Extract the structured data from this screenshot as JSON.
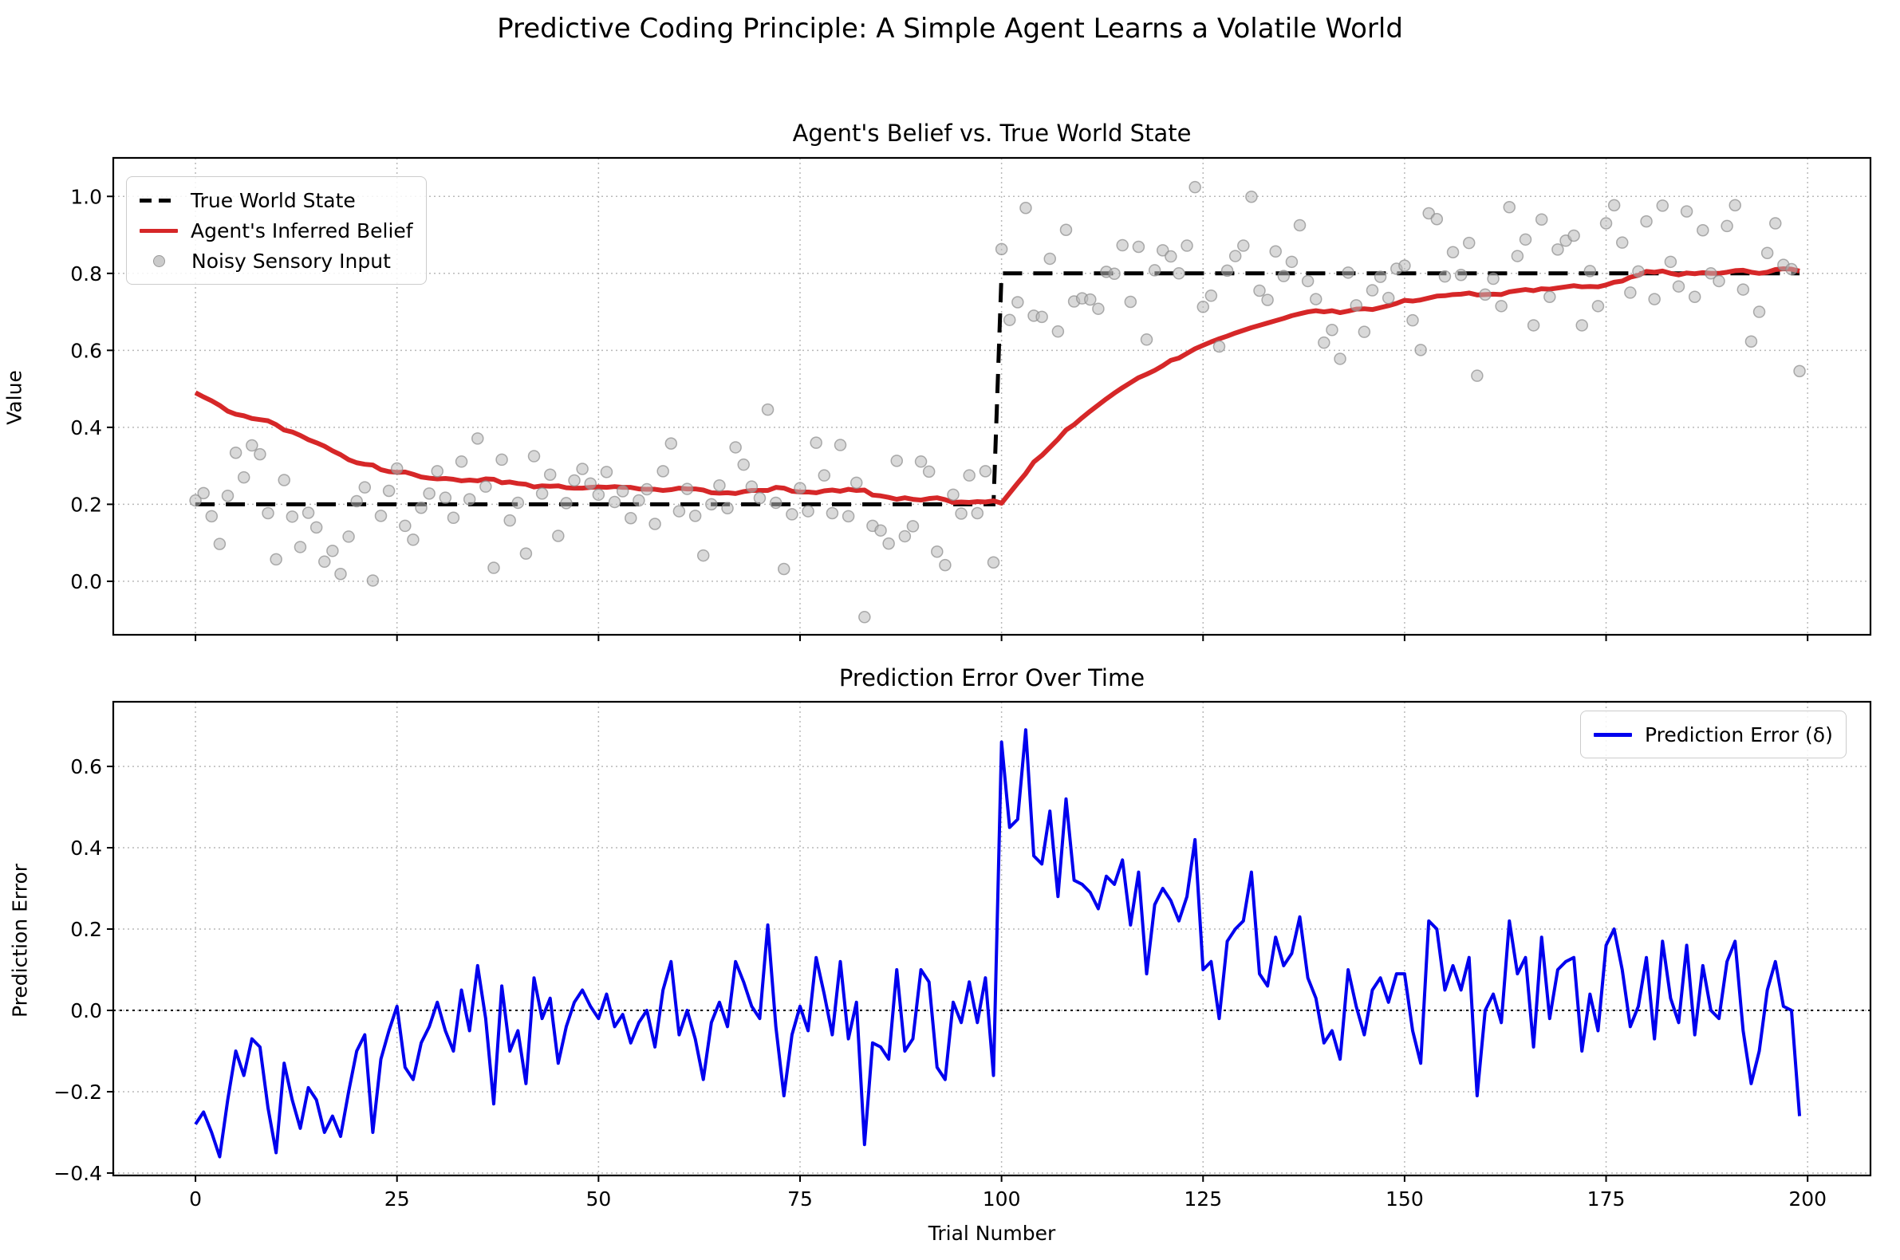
{
  "figure": {
    "title": "Predictive Coding Principle: A Simple Agent Learns a Volatile World",
    "background": "#ffffff"
  },
  "top_chart": {
    "title": "Agent's Belief vs. True World State",
    "ylabel": "Value",
    "legend": [
      {
        "label": "True World State",
        "color": "#000000",
        "style": "dashed"
      },
      {
        "label": "Agent's Inferred Belief",
        "color": "#d62728",
        "style": "solid"
      },
      {
        "label": "Noisy Sensory Input",
        "color": "#bdbdbd",
        "style": "dot"
      }
    ]
  },
  "bottom_chart": {
    "title": "Prediction Error Over Time",
    "ylabel": "Prediction Error",
    "xlabel": "Trial Number",
    "legend": [
      {
        "label": "Prediction Error (δ)",
        "color": "#0000ee",
        "style": "solid"
      }
    ]
  },
  "chart_data": [
    {
      "type": "line",
      "title": "Agent's Belief vs. True World State",
      "xlabel": "",
      "ylabel": "Value",
      "x_start": 0,
      "x_step": 1,
      "n": 200,
      "xlim": [
        -10.2,
        207.8
      ],
      "ylim": [
        -0.139,
        1.1
      ],
      "xticks": [
        0,
        25,
        50,
        75,
        100,
        125,
        150,
        175,
        200
      ],
      "xtick_labels_shown": false,
      "yticks": [
        0.0,
        0.2,
        0.4,
        0.6,
        0.8,
        1.0
      ],
      "grid": true,
      "legend_position": "upper-left",
      "series": [
        {
          "name": "True World State",
          "style": "dashed",
          "color": "#000000",
          "width": 5,
          "segments": [
            {
              "x_from": 0,
              "x_to": 99,
              "value": 0.2
            },
            {
              "x_from": 100,
              "x_to": 199,
              "value": 0.8
            }
          ]
        },
        {
          "name": "Agent's Inferred Belief",
          "style": "solid",
          "color": "#d62728",
          "width": 6,
          "values": [
            0.49,
            0.479,
            0.469,
            0.457,
            0.442,
            0.434,
            0.43,
            0.423,
            0.42,
            0.417,
            0.407,
            0.393,
            0.388,
            0.379,
            0.368,
            0.36,
            0.351,
            0.339,
            0.329,
            0.316,
            0.308,
            0.304,
            0.302,
            0.29,
            0.285,
            0.283,
            0.284,
            0.278,
            0.271,
            0.268,
            0.266,
            0.267,
            0.265,
            0.261,
            0.263,
            0.261,
            0.266,
            0.265,
            0.256,
            0.258,
            0.254,
            0.252,
            0.245,
            0.248,
            0.247,
            0.248,
            0.243,
            0.242,
            0.242,
            0.244,
            0.245,
            0.244,
            0.246,
            0.244,
            0.244,
            0.24,
            0.239,
            0.239,
            0.236,
            0.238,
            0.242,
            0.24,
            0.24,
            0.237,
            0.23,
            0.229,
            0.23,
            0.228,
            0.233,
            0.236,
            0.236,
            0.236,
            0.244,
            0.242,
            0.234,
            0.232,
            0.232,
            0.23,
            0.235,
            0.237,
            0.234,
            0.239,
            0.236,
            0.237,
            0.224,
            0.222,
            0.218,
            0.213,
            0.217,
            0.213,
            0.211,
            0.215,
            0.217,
            0.212,
            0.205,
            0.206,
            0.205,
            0.207,
            0.206,
            0.209,
            0.203,
            0.229,
            0.255,
            0.28,
            0.31,
            0.327,
            0.348,
            0.369,
            0.393,
            0.407,
            0.425,
            0.442,
            0.458,
            0.474,
            0.489,
            0.503,
            0.516,
            0.529,
            0.538,
            0.548,
            0.56,
            0.574,
            0.58,
            0.592,
            0.604,
            0.613,
            0.622,
            0.63,
            0.637,
            0.645,
            0.652,
            0.659,
            0.665,
            0.671,
            0.677,
            0.683,
            0.69,
            0.695,
            0.7,
            0.703,
            0.7,
            0.703,
            0.698,
            0.702,
            0.707,
            0.708,
            0.706,
            0.711,
            0.716,
            0.722,
            0.73,
            0.728,
            0.731,
            0.736,
            0.741,
            0.742,
            0.745,
            0.746,
            0.749,
            0.744,
            0.745,
            0.746,
            0.745,
            0.752,
            0.755,
            0.758,
            0.755,
            0.76,
            0.759,
            0.762,
            0.765,
            0.768,
            0.765,
            0.766,
            0.765,
            0.77,
            0.777,
            0.78,
            0.79,
            0.795,
            0.805,
            0.803,
            0.806,
            0.8,
            0.796,
            0.801,
            0.799,
            0.802,
            0.8,
            0.8,
            0.803,
            0.807,
            0.808,
            0.803,
            0.8,
            0.803,
            0.81,
            0.812,
            0.811,
            0.806
          ]
        },
        {
          "name": "Noisy Sensory Input",
          "style": "scatter",
          "color": "#bdbdbd",
          "marker_radius": 7,
          "values": [
            0.21,
            0.229,
            0.169,
            0.097,
            0.222,
            0.334,
            0.27,
            0.353,
            0.33,
            0.177,
            0.057,
            0.263,
            0.168,
            0.089,
            0.178,
            0.14,
            0.051,
            0.079,
            0.019,
            0.116,
            0.208,
            0.244,
            0.002,
            0.17,
            0.235,
            0.293,
            0.144,
            0.108,
            0.191,
            0.228,
            0.286,
            0.217,
            0.165,
            0.311,
            0.213,
            0.371,
            0.246,
            0.035,
            0.316,
            0.158,
            0.204,
            0.072,
            0.325,
            0.228,
            0.277,
            0.118,
            0.203,
            0.262,
            0.292,
            0.254,
            0.225,
            0.284,
            0.206,
            0.234,
            0.164,
            0.21,
            0.239,
            0.149,
            0.286,
            0.358,
            0.182,
            0.24,
            0.17,
            0.067,
            0.2,
            0.249,
            0.19,
            0.348,
            0.303,
            0.246,
            0.216,
            0.446,
            0.204,
            0.032,
            0.174,
            0.242,
            0.182,
            0.36,
            0.275,
            0.177,
            0.354,
            0.169,
            0.256,
            -0.093,
            0.144,
            0.132,
            0.098,
            0.313,
            0.117,
            0.143,
            0.311,
            0.285,
            0.077,
            0.042,
            0.225,
            0.176,
            0.275,
            0.177,
            0.286,
            0.049,
            0.863,
            0.679,
            0.725,
            0.97,
            0.69,
            0.687,
            0.838,
            0.649,
            0.913,
            0.727,
            0.735,
            0.732,
            0.708,
            0.804,
            0.799,
            0.873,
            0.726,
            0.869,
            0.628,
            0.808,
            0.86,
            0.844,
            0.8,
            0.872,
            1.024,
            0.713,
            0.742,
            0.61,
            0.807,
            0.845,
            0.872,
            0.999,
            0.755,
            0.731,
            0.857,
            0.793,
            0.83,
            0.925,
            0.78,
            0.733,
            0.62,
            0.653,
            0.578,
            0.802,
            0.717,
            0.648,
            0.756,
            0.791,
            0.736,
            0.812,
            0.82,
            0.678,
            0.601,
            0.956,
            0.941,
            0.792,
            0.855,
            0.796,
            0.879,
            0.534,
            0.745,
            0.786,
            0.715,
            0.972,
            0.845,
            0.888,
            0.665,
            0.94,
            0.739,
            0.862,
            0.885,
            0.898,
            0.665,
            0.806,
            0.715,
            0.93,
            0.977,
            0.88,
            0.75,
            0.805,
            0.935,
            0.733,
            0.976,
            0.83,
            0.766,
            0.961,
            0.739,
            0.912,
            0.8,
            0.78,
            0.923,
            0.977,
            0.758,
            0.623,
            0.7,
            0.853,
            0.93,
            0.822,
            0.811,
            0.546
          ]
        }
      ]
    },
    {
      "type": "line",
      "title": "Prediction Error Over Time",
      "xlabel": "Trial Number",
      "ylabel": "Prediction Error",
      "x_start": 0,
      "x_step": 1,
      "n": 200,
      "xlim": [
        -10.2,
        207.8
      ],
      "ylim": [
        -0.406,
        0.759
      ],
      "xticks": [
        0,
        25,
        50,
        75,
        100,
        125,
        150,
        175,
        200
      ],
      "xtick_labels_shown": true,
      "yticks": [
        -0.4,
        -0.2,
        0.0,
        0.2,
        0.4,
        0.6
      ],
      "grid": true,
      "zero_line": true,
      "legend_position": "upper-right",
      "series": [
        {
          "name": "Prediction Error (δ)",
          "style": "solid",
          "color": "#0000ee",
          "width": 4,
          "values": [
            -0.28,
            -0.25,
            -0.3,
            -0.36,
            -0.22,
            -0.1,
            -0.16,
            -0.07,
            -0.09,
            -0.24,
            -0.35,
            -0.13,
            -0.22,
            -0.29,
            -0.19,
            -0.22,
            -0.3,
            -0.26,
            -0.31,
            -0.2,
            -0.1,
            -0.06,
            -0.3,
            -0.12,
            -0.05,
            0.01,
            -0.14,
            -0.17,
            -0.08,
            -0.04,
            0.02,
            -0.05,
            -0.1,
            0.05,
            -0.05,
            0.11,
            -0.02,
            -0.23,
            0.06,
            -0.1,
            -0.05,
            -0.18,
            0.08,
            -0.02,
            0.03,
            -0.13,
            -0.04,
            0.02,
            0.05,
            0.01,
            -0.02,
            0.04,
            -0.04,
            -0.01,
            -0.08,
            -0.03,
            0.0,
            -0.09,
            0.05,
            0.12,
            -0.06,
            0.0,
            -0.07,
            -0.17,
            -0.03,
            0.02,
            -0.04,
            0.12,
            0.07,
            0.01,
            -0.02,
            0.21,
            -0.04,
            -0.21,
            -0.06,
            0.01,
            -0.05,
            0.13,
            0.04,
            -0.06,
            0.12,
            -0.07,
            0.02,
            -0.33,
            -0.08,
            -0.09,
            -0.12,
            0.1,
            -0.1,
            -0.07,
            0.1,
            0.07,
            -0.14,
            -0.17,
            0.02,
            -0.03,
            0.07,
            -0.03,
            0.08,
            -0.16,
            0.66,
            0.45,
            0.47,
            0.69,
            0.38,
            0.36,
            0.49,
            0.28,
            0.52,
            0.32,
            0.31,
            0.29,
            0.25,
            0.33,
            0.31,
            0.37,
            0.21,
            0.34,
            0.09,
            0.26,
            0.3,
            0.27,
            0.22,
            0.28,
            0.42,
            0.1,
            0.12,
            -0.02,
            0.17,
            0.2,
            0.22,
            0.34,
            0.09,
            0.06,
            0.18,
            0.11,
            0.14,
            0.23,
            0.08,
            0.03,
            -0.08,
            -0.05,
            -0.12,
            0.1,
            0.01,
            -0.06,
            0.05,
            0.08,
            0.02,
            0.09,
            0.09,
            -0.05,
            -0.13,
            0.22,
            0.2,
            0.05,
            0.11,
            0.05,
            0.13,
            -0.21,
            0.0,
            0.04,
            -0.03,
            0.22,
            0.09,
            0.13,
            -0.09,
            0.18,
            -0.02,
            0.1,
            0.12,
            0.13,
            -0.1,
            0.04,
            -0.05,
            0.16,
            0.2,
            0.1,
            -0.04,
            0.01,
            0.13,
            -0.07,
            0.17,
            0.03,
            -0.03,
            0.16,
            -0.06,
            0.11,
            0.0,
            -0.02,
            0.12,
            0.17,
            -0.05,
            -0.18,
            -0.1,
            0.05,
            0.12,
            0.01,
            0.0,
            -0.26
          ]
        }
      ]
    }
  ]
}
